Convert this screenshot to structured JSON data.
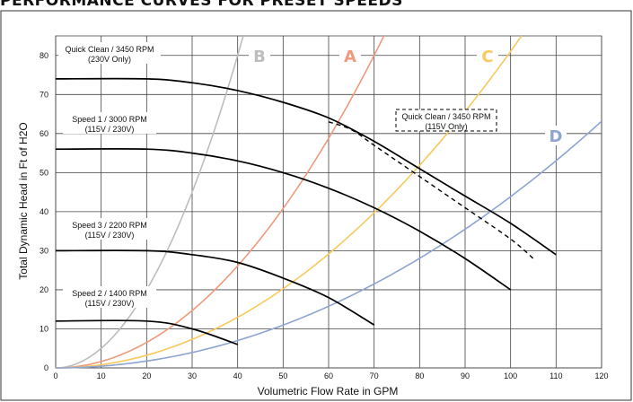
{
  "page": {
    "title": "PERFORMANCE CURVES FOR PRESET SPEEDS"
  },
  "chart_data": {
    "type": "line",
    "xlabel": "Volumetric Flow Rate in GPM",
    "ylabel": "Total Dynamic Head in Ft of H2O",
    "xlim": [
      0,
      120
    ],
    "ylim": [
      0,
      85
    ],
    "xticks": [
      "0",
      "10",
      "20",
      "30",
      "40",
      "50",
      "60",
      "70",
      "80",
      "90",
      "100",
      "110",
      "120"
    ],
    "yticks": [
      "0",
      "10",
      "20",
      "30",
      "40",
      "50",
      "60",
      "70",
      "80"
    ],
    "grid": true,
    "pump_curves": [
      {
        "label": [
          "Quick Clean / 3450 RPM",
          "(230V Only)"
        ],
        "color": "#000000",
        "dashed": false,
        "x": [
          0,
          20,
          30,
          40,
          50,
          60,
          70,
          80,
          90,
          100,
          110
        ],
        "y": [
          74,
          74,
          73,
          71,
          68,
          64,
          58,
          51,
          44,
          37,
          29
        ]
      },
      {
        "label": [
          "Quick Clean / 3450 RPM",
          "(115V Only)"
        ],
        "color": "#000000",
        "dashed": true,
        "x": [
          60,
          65,
          70,
          80,
          90,
          100,
          105
        ],
        "y": [
          63,
          61,
          57,
          49,
          41,
          33,
          28
        ]
      },
      {
        "label": [
          "Speed 1 / 3000 RPM",
          "(115V / 230V)"
        ],
        "color": "#000000",
        "dashed": false,
        "x": [
          0,
          20,
          30,
          40,
          50,
          60,
          70,
          80,
          90,
          100
        ],
        "y": [
          56,
          56,
          55,
          53,
          50,
          46,
          41,
          35,
          28,
          20
        ]
      },
      {
        "label": [
          "Speed 3 / 2200 RPM",
          "(115V / 230V)"
        ],
        "color": "#000000",
        "dashed": false,
        "x": [
          0,
          20,
          30,
          40,
          50,
          60,
          70
        ],
        "y": [
          30,
          30,
          29,
          27,
          23,
          18,
          11
        ]
      },
      {
        "label": [
          "Speed 2 / 1400 RPM",
          "(115V / 230V)"
        ],
        "color": "#000000",
        "dashed": false,
        "x": [
          0,
          20,
          30,
          40
        ],
        "y": [
          12,
          12,
          10,
          6
        ]
      }
    ],
    "system_curves": [
      {
        "name": "A",
        "color": "#EE9A7C",
        "x": [
          0,
          10,
          20,
          30,
          40,
          50,
          60,
          70
        ],
        "y": [
          0,
          1.6,
          6.5,
          14.7,
          26.1,
          40.8,
          58.8,
          80
        ]
      },
      {
        "name": "B",
        "color": "#BDBDBD",
        "x": [
          0,
          10,
          20,
          30,
          40
        ],
        "y": [
          0,
          5,
          20,
          45,
          80
        ]
      },
      {
        "name": "C",
        "color": "#F8C95C",
        "x": [
          0,
          20,
          40,
          60,
          80,
          100
        ],
        "y": [
          0,
          3.2,
          13,
          29,
          52,
          81
        ]
      },
      {
        "name": "D",
        "color": "#8EA4D2",
        "x": [
          0,
          20,
          40,
          60,
          80,
          100,
          120
        ],
        "y": [
          0,
          1.8,
          7,
          16,
          28,
          44,
          63
        ]
      }
    ]
  }
}
